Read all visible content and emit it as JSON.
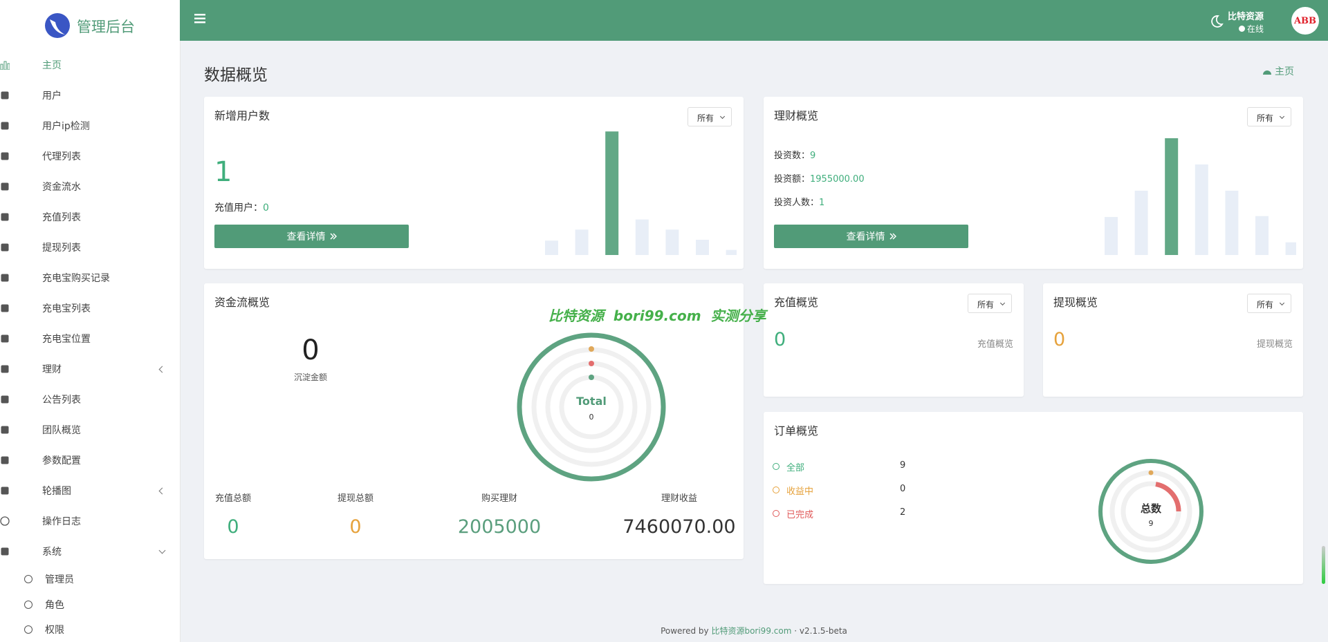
{
  "sidebar": {
    "brand": "管理后台",
    "menu": [
      "主页",
      "用户",
      "用户ip检测",
      "代理列表",
      "资金流水",
      "充值列表",
      "提现列表",
      "充电宝购买记录",
      "充电宝列表",
      "充电宝位置",
      "理财",
      "公告列表",
      "团队概览",
      "参数配置",
      "轮播图",
      "操作日志",
      "系统"
    ],
    "submenu": [
      "管理员",
      "角色",
      "权限"
    ]
  },
  "header": {
    "user": "比特资源",
    "status": "在线",
    "avatar": "ABB"
  },
  "page": {
    "title": "数据概览",
    "breadcrumb": "主页"
  },
  "new_users": {
    "title": "新增用户数",
    "filter": "所有",
    "count": "1",
    "recharge_label": "充值用户：",
    "recharge_value": "0",
    "button": "查看详情",
    "bars": [
      17,
      30,
      146,
      42,
      30,
      18,
      6
    ]
  },
  "finance": {
    "title": "理财概览",
    "filter": "所有",
    "stats": [
      {
        "label": "投资数：",
        "value": "9"
      },
      {
        "label": "投资额：",
        "value": "1955000.00"
      },
      {
        "label": "投资人数：",
        "value": "1"
      }
    ],
    "button": "查看详情",
    "bars": [
      45,
      76,
      138,
      107,
      76,
      46,
      15
    ]
  },
  "funds": {
    "title": "资金流概览",
    "amount": "0",
    "amount_label": "沉淀金额",
    "ring_title": "Total",
    "ring_value": "0",
    "stats": [
      {
        "label": "充值总额",
        "value": "0"
      },
      {
        "label": "提现总额",
        "value": "0"
      },
      {
        "label": "购买理财",
        "value": "2005000"
      },
      {
        "label": "理财收益",
        "value": "7460070.00"
      }
    ]
  },
  "recharge": {
    "title": "充值概览",
    "filter": "所有",
    "value": "0",
    "caption": "充值概览"
  },
  "withdraw": {
    "title": "提现概览",
    "filter": "所有",
    "value": "0",
    "caption": "提现概览"
  },
  "orders": {
    "title": "订单概览",
    "items": [
      {
        "label": "全部",
        "value": "9"
      },
      {
        "label": "收益中",
        "value": "0"
      },
      {
        "label": "已完成",
        "value": "2"
      }
    ],
    "ring_title": "总数",
    "ring_value": "9"
  },
  "watermark": "比特资源  bori99.com  实测分享",
  "footer": {
    "prefix": "Powered by",
    "link": "比特资源bori99.com",
    "separator": "·",
    "version": "v2.1.5-beta"
  }
}
